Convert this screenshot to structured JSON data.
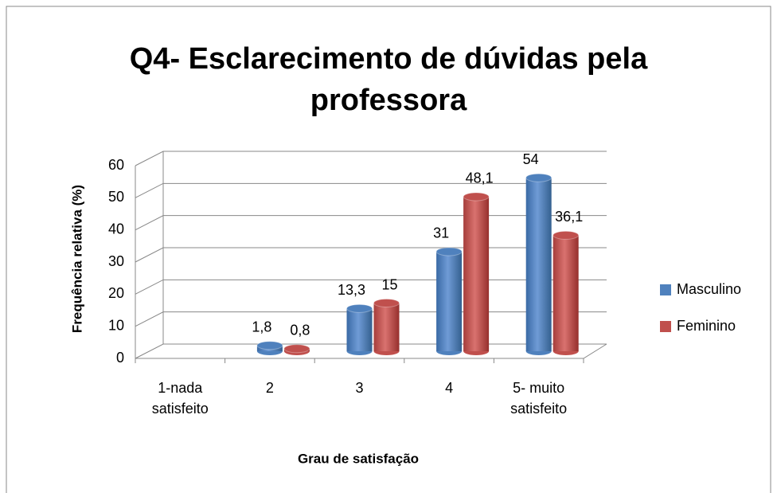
{
  "chart_data": {
    "type": "bar3d",
    "title": "Q4- Esclarecimento de dúvidas pela professora",
    "x_label": "Grau de satisfação",
    "y_label": "Frequência relativa (%)",
    "categories": [
      "1-nada satisfeito",
      "2",
      "3",
      "4",
      "5- muito satisfeito"
    ],
    "series": [
      {
        "name": "Masculino",
        "color": "#4f81bd",
        "values": [
          null,
          1.8,
          13.3,
          31,
          54
        ],
        "value_labels": [
          null,
          "1,8",
          "13,3",
          "31",
          "54"
        ]
      },
      {
        "name": "Feminino",
        "color": "#c0504d",
        "values": [
          null,
          0.8,
          15,
          48.1,
          36.1
        ],
        "value_labels": [
          null,
          "0,8",
          "15",
          "48,1",
          "36,1"
        ]
      }
    ],
    "ylim": [
      0,
      60
    ],
    "yticks": [
      0,
      10,
      20,
      30,
      40,
      50,
      60
    ],
    "grid": true,
    "legend": "right"
  }
}
